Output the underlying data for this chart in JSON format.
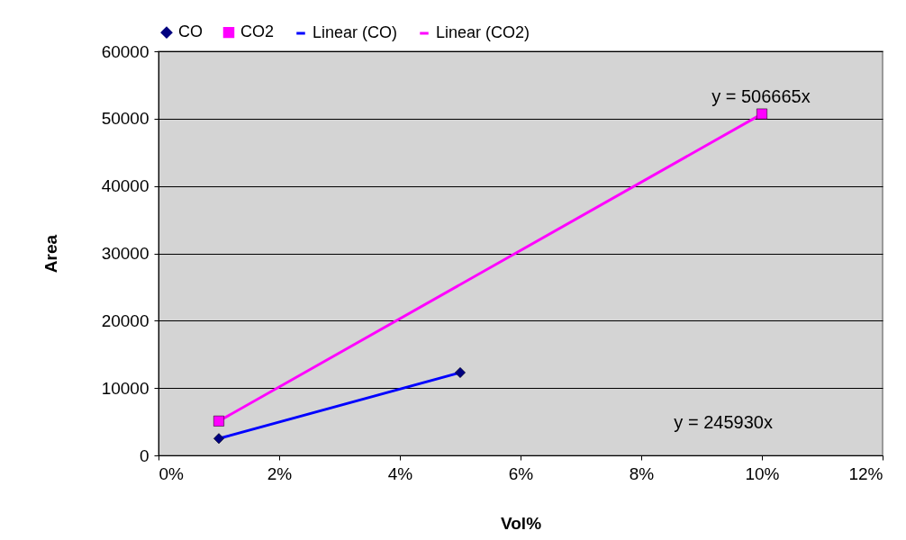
{
  "chart_data": {
    "type": "scatter",
    "xlabel": "Vol%",
    "ylabel": "Area",
    "xlim": [
      0,
      0.12
    ],
    "xticks": [
      {
        "value": 0,
        "label": "0%"
      },
      {
        "value": 0.02,
        "label": "2%"
      },
      {
        "value": 0.04,
        "label": "4%"
      },
      {
        "value": 0.06,
        "label": "6%"
      },
      {
        "value": 0.08,
        "label": "8%"
      },
      {
        "value": 0.1,
        "label": "10%"
      },
      {
        "value": 0.12,
        "label": "12%"
      }
    ],
    "ylim": [
      0,
      60000
    ],
    "yticks": [
      0,
      10000,
      20000,
      30000,
      40000,
      50000,
      60000
    ],
    "grid": "y",
    "legend": "top",
    "series": [
      {
        "name": "CO",
        "marker": "diamond",
        "color": "#000080",
        "x": [
          0.01,
          0.05
        ],
        "values": [
          2500,
          12300
        ]
      },
      {
        "name": "CO2",
        "marker": "square",
        "color": "#ff00ff",
        "x": [
          0.01,
          0.1
        ],
        "values": [
          5100,
          50700
        ]
      },
      {
        "name": "Linear (CO)",
        "type": "line",
        "color": "#0000ff",
        "x": [
          0.01,
          0.05
        ],
        "values": [
          2500,
          12300
        ]
      },
      {
        "name": "Linear (CO2)",
        "type": "line",
        "color": "#ff00ff",
        "x": [
          0.01,
          0.1
        ],
        "values": [
          5100,
          50700
        ]
      }
    ],
    "annotations": [
      "y = 506665x",
      "y = 245930x"
    ]
  }
}
